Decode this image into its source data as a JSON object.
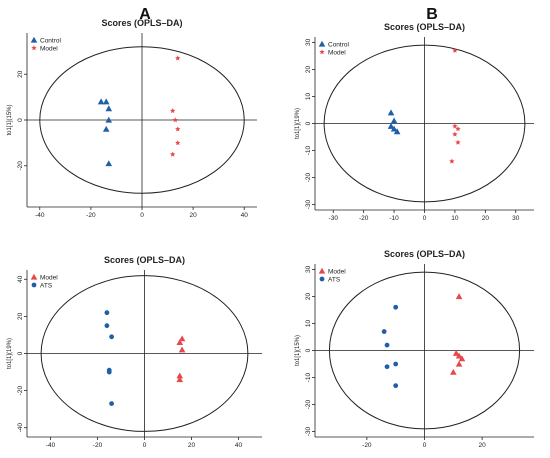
{
  "panel_letters": [
    "A",
    "B"
  ],
  "colors": {
    "blue": "#1f5fa8",
    "red": "#e8474b",
    "axis": "#222222"
  },
  "chart_data": [
    {
      "type": "scatter",
      "title": "Scores (OPLS–DA)",
      "ylabel": "to1[1](15%)",
      "xlim": [
        -45,
        45
      ],
      "ylim": [
        -38,
        38
      ],
      "xticks": [
        -40,
        -20,
        0,
        20,
        40
      ],
      "yticks": [
        -20,
        0,
        20
      ],
      "ellipse": {
        "rx": 40,
        "ry": 32
      },
      "legend_position": "top-left",
      "series": [
        {
          "name": "Control",
          "marker": "triangle",
          "color": "#1f5fa8",
          "x": [
            -16,
            -14,
            -13,
            -13,
            -14,
            -13
          ],
          "y": [
            8,
            8,
            5,
            0,
            -4,
            -19
          ]
        },
        {
          "name": "Model",
          "marker": "star",
          "color": "#e8474b",
          "x": [
            14,
            12,
            13,
            14,
            14,
            12
          ],
          "y": [
            27,
            4,
            0,
            -4,
            -10,
            -15
          ]
        }
      ]
    },
    {
      "type": "scatter",
      "title": "Scores (OPLS–DA)",
      "ylabel": "to1[1](19%)",
      "xlim": [
        -36,
        36
      ],
      "ylim": [
        -32,
        32
      ],
      "xticks": [
        -30,
        -20,
        -10,
        0,
        10,
        20,
        30
      ],
      "yticks": [
        -30,
        -20,
        -10,
        0,
        10,
        20,
        30
      ],
      "ellipse": {
        "rx": 33,
        "ry": 29
      },
      "legend_position": "top-left",
      "series": [
        {
          "name": "Control",
          "marker": "triangle",
          "color": "#1f5fa8",
          "x": [
            -11,
            -10,
            -11,
            -10,
            -9
          ],
          "y": [
            4,
            1,
            -1,
            -2,
            -3
          ]
        },
        {
          "name": "Model",
          "marker": "star",
          "color": "#e8474b",
          "x": [
            10,
            10,
            11,
            10,
            11,
            9
          ],
          "y": [
            27,
            -1,
            -2,
            -4,
            -7,
            -14
          ]
        }
      ]
    },
    {
      "type": "scatter",
      "title": "Scores (OPLS–DA)",
      "ylabel": "to1[1](19%)",
      "xlim": [
        -50,
        50
      ],
      "ylim": [
        -45,
        45
      ],
      "xticks": [
        -40,
        -20,
        0,
        20,
        40
      ],
      "yticks": [
        -40,
        -20,
        0,
        20,
        40
      ],
      "ellipse": {
        "rx": 44,
        "ry": 42
      },
      "legend_position": "top-left",
      "series": [
        {
          "name": "Model",
          "marker": "triangle",
          "color": "#e8474b",
          "x": [
            16,
            15,
            16,
            15,
            15
          ],
          "y": [
            8,
            6,
            2,
            -12,
            -14
          ]
        },
        {
          "name": "ATS",
          "marker": "circle",
          "color": "#1f5fa8",
          "x": [
            -16,
            -16,
            -14,
            -15,
            -15,
            -14
          ],
          "y": [
            22,
            15,
            9,
            -9,
            -10,
            -27
          ]
        }
      ]
    },
    {
      "type": "scatter",
      "title": "Scores (OPLS–DA)",
      "ylabel": "to1[1](15%)",
      "xlim": [
        -38,
        38
      ],
      "ylim": [
        -32,
        32
      ],
      "xticks": [
        -20,
        0,
        20
      ],
      "yticks": [
        -30,
        -20,
        -10,
        0,
        10,
        20,
        30
      ],
      "ellipse": {
        "rx": 33,
        "ry": 29
      },
      "legend_position": "top-left",
      "series": [
        {
          "name": "Model",
          "marker": "triangle",
          "color": "#e8474b",
          "x": [
            12,
            11,
            12,
            13,
            12,
            10
          ],
          "y": [
            20,
            -1,
            -2,
            -3,
            -5,
            -8
          ]
        },
        {
          "name": "ATS",
          "marker": "circle",
          "color": "#1f5fa8",
          "x": [
            -10,
            -14,
            -13,
            -10,
            -13,
            -10
          ],
          "y": [
            16,
            7,
            2,
            -5,
            -6,
            -13
          ]
        }
      ]
    }
  ]
}
